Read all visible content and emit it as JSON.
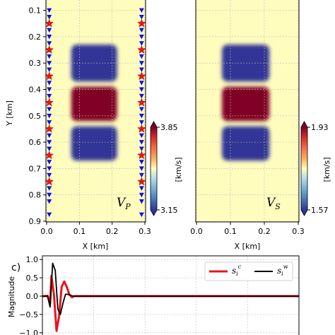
{
  "chart_data": [
    {
      "type": "heatmap",
      "name": "V_P model",
      "xlabel": "X [km]",
      "ylabel": "Y [km]",
      "xlim": [
        0,
        0.3
      ],
      "ylim": [
        0.9,
        0.05
      ],
      "xticks": [
        "0.0",
        "0.1",
        "0.2",
        "0.3"
      ],
      "yticks": [
        "0.1",
        "0.2",
        "0.3",
        "0.4",
        "0.5",
        "0.6",
        "0.7",
        "0.8",
        "0.9"
      ],
      "label_main": "V",
      "label_sub": "P",
      "colorbar": {
        "min": 3.15,
        "max": 3.85,
        "min_label": "3.15",
        "max_label": "3.85",
        "label": "[km/s]"
      },
      "background_value": 3.5,
      "anomalies": [
        {
          "x": [
            0.075,
            0.215
          ],
          "y": [
            0.23,
            0.37
          ],
          "value": 3.15
        },
        {
          "x": [
            0.075,
            0.215
          ],
          "y": [
            0.39,
            0.52
          ],
          "value": 3.85
        },
        {
          "x": [
            0.075,
            0.215
          ],
          "y": [
            0.54,
            0.67
          ],
          "value": 3.15
        }
      ],
      "sources_x": [
        0.008,
        0.29
      ],
      "sources_y": [
        0.15,
        0.25,
        0.35,
        0.45,
        0.55,
        0.65,
        0.75
      ],
      "receivers_x": [
        0.008,
        0.29
      ],
      "receivers_y": [
        0.1,
        0.125,
        0.175,
        0.2,
        0.225,
        0.275,
        0.3,
        0.325,
        0.375,
        0.4,
        0.425,
        0.475,
        0.5,
        0.525,
        0.575,
        0.6,
        0.625,
        0.675,
        0.7,
        0.725,
        0.775,
        0.8,
        0.825,
        0.875
      ]
    },
    {
      "type": "heatmap",
      "name": "V_S model",
      "xlabel": "X [km]",
      "xlim": [
        0,
        0.3
      ],
      "ylim": [
        0.9,
        0.05
      ],
      "xticks": [
        "0.0",
        "0.1",
        "0.2",
        "0.3"
      ],
      "label_main": "V",
      "label_sub": "S",
      "colorbar": {
        "min": 1.57,
        "max": 1.93,
        "min_label": "1.57",
        "max_label": "1.93",
        "label": "[km/s]"
      },
      "background_value": 1.75,
      "anomalies": [
        {
          "x": [
            0.075,
            0.215
          ],
          "y": [
            0.23,
            0.37
          ],
          "value": 1.57
        },
        {
          "x": [
            0.075,
            0.215
          ],
          "y": [
            0.39,
            0.52
          ],
          "value": 1.93
        },
        {
          "x": [
            0.075,
            0.215
          ],
          "y": [
            0.54,
            0.67
          ],
          "value": 1.57
        }
      ]
    },
    {
      "type": "line",
      "panel_label": "c)",
      "ylabel": "Magnitude",
      "ylim": [
        -1.1,
        1.1
      ],
      "yticks": [
        "1.0",
        "0.5",
        "0.0",
        "−0.5",
        "−1.0"
      ],
      "legend_position": "top-right",
      "series": [
        {
          "name": "s_i^c",
          "legend_main": "s",
          "legend_sub": "i",
          "legend_sup": "c",
          "color": "#e8141e",
          "x": [
            0,
            0.01,
            0.02,
            0.03,
            0.035,
            0.045,
            0.055,
            0.065,
            0.075,
            0.085,
            0.095,
            0.105,
            0.115,
            0.125,
            0.14,
            0.16,
            1
          ],
          "y": [
            0,
            0,
            0.01,
            -0.2,
            0.55,
            0.05,
            -0.95,
            -0.55,
            0.25,
            0.4,
            0.25,
            0.05,
            -0.03,
            0,
            0,
            0,
            0
          ]
        },
        {
          "name": "s_i^w",
          "legend_main": "s",
          "legend_sub": "i",
          "legend_sup": "w",
          "color": "#000000",
          "x": [
            0,
            0.01,
            0.02,
            0.03,
            0.04,
            0.05,
            0.06,
            0.07,
            0.08,
            0.09,
            0.1,
            0.11,
            0.12,
            0.13,
            0.14,
            0.16,
            1
          ],
          "y": [
            0,
            0,
            0,
            -0.3,
            0.9,
            0.7,
            -0.35,
            -0.5,
            -0.2,
            0.05,
            0.05,
            0.02,
            0,
            0,
            0,
            0,
            0
          ]
        }
      ]
    }
  ]
}
